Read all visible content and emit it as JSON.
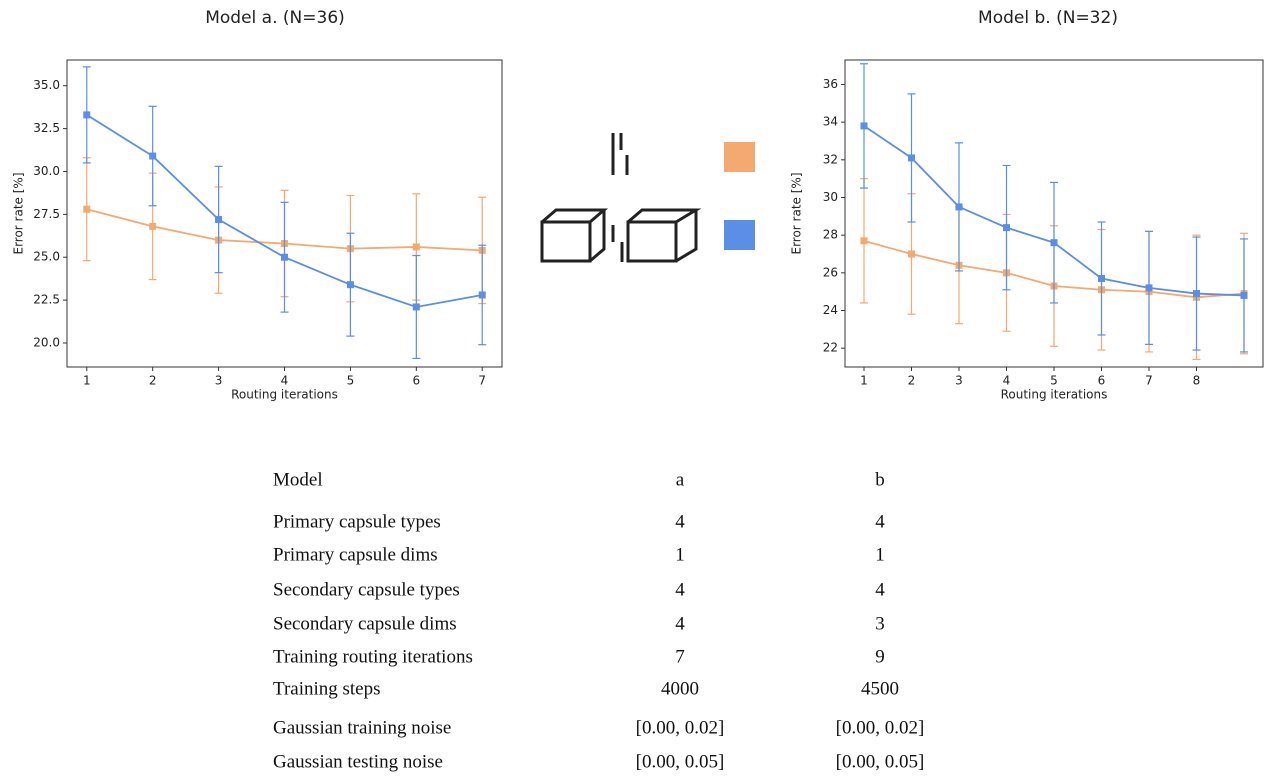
{
  "chart_data": [
    {
      "type": "line",
      "title": "Model a. (N=36)",
      "xlabel": "Routing iterations",
      "ylabel": "Error rate [%]",
      "x": [
        1,
        2,
        3,
        4,
        5,
        6,
        7
      ],
      "xlim": [
        0.7,
        7.3
      ],
      "xticks": [
        1,
        2,
        3,
        4,
        5,
        6,
        7
      ],
      "ylim": [
        18.6,
        36.5
      ],
      "yticks": [
        {
          "value": 20,
          "label": "20.0"
        },
        {
          "value": 22.5,
          "label": "22.5"
        },
        {
          "value": 25,
          "label": "25.0"
        },
        {
          "value": 27.5,
          "label": "27.5"
        },
        {
          "value": 30,
          "label": "30.0"
        },
        {
          "value": 32.5,
          "label": "32.5"
        },
        {
          "value": 35,
          "label": "35.0"
        }
      ],
      "series": [
        {
          "color": "#f4a971",
          "values": [
            27.8,
            26.8,
            26.0,
            25.8,
            25.5,
            25.6,
            25.4
          ],
          "errors": [
            3.0,
            3.1,
            3.1,
            3.1,
            3.1,
            3.1,
            3.1
          ]
        },
        {
          "color": "#5b8ee6",
          "values": [
            33.3,
            30.9,
            27.2,
            25.0,
            23.4,
            22.1,
            22.8
          ],
          "errors": [
            2.8,
            2.9,
            3.1,
            3.2,
            3.0,
            3.0,
            2.9
          ]
        }
      ]
    },
    {
      "type": "line",
      "title": "Model b. (N=32)",
      "xlabel": "Routing iterations",
      "ylabel": "Error rate [%]",
      "x": [
        1,
        2,
        3,
        4,
        5,
        6,
        7,
        8,
        9
      ],
      "xlim": [
        0.6,
        9.4
      ],
      "xticks": [
        1,
        2,
        3,
        4,
        5,
        6,
        7,
        8
      ],
      "ylim": [
        21,
        37.3
      ],
      "yticks": [
        22,
        24,
        26,
        28,
        30,
        32,
        34,
        36
      ],
      "series": [
        {
          "color": "#f4a971",
          "values": [
            27.7,
            27.0,
            26.4,
            26.0,
            25.3,
            25.1,
            25.0,
            24.7,
            24.9
          ],
          "errors": [
            3.3,
            3.2,
            3.1,
            3.1,
            3.2,
            3.2,
            3.2,
            3.3,
            3.2
          ]
        },
        {
          "color": "#5b8ee6",
          "values": [
            33.8,
            32.1,
            29.5,
            28.4,
            27.6,
            25.7,
            25.2,
            24.9,
            24.8
          ],
          "errors": [
            3.3,
            3.4,
            3.4,
            3.3,
            3.2,
            3.0,
            3.0,
            3.0,
            3.0
          ]
        }
      ]
    }
  ],
  "table": {
    "header": [
      "Model",
      "a",
      "b"
    ],
    "rows": [
      [
        "Primary capsule types",
        "4",
        "4"
      ],
      [
        "Primary capsule dims",
        "1",
        "1"
      ],
      [
        "Secondary capsule types",
        "4",
        "4"
      ],
      [
        "Secondary capsule dims",
        "4",
        "3"
      ],
      [
        "Training routing iterations",
        "7",
        "9"
      ],
      [
        "Training steps",
        "4000",
        "4500"
      ],
      [
        "Gaussian training noise",
        "[0.00, 0.02]",
        "[0.00, 0.02]"
      ],
      [
        "Gaussian testing noise",
        "[0.00, 0.05]",
        "[0.00, 0.05]"
      ]
    ]
  }
}
